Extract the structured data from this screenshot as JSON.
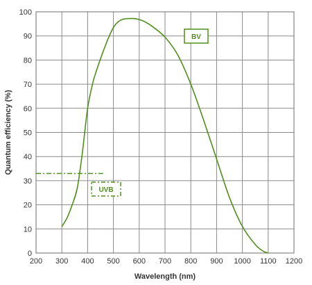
{
  "chart_data": {
    "type": "line",
    "title": "",
    "xlabel": "Wavelength (nm)",
    "ylabel": "Quantum efficiency (%)",
    "xlim": [
      200,
      1200
    ],
    "ylim": [
      0,
      100
    ],
    "x_ticks": [
      200,
      300,
      400,
      500,
      600,
      700,
      800,
      900,
      1000,
      1100,
      1200
    ],
    "y_ticks": [
      0,
      10,
      20,
      30,
      40,
      50,
      60,
      70,
      80,
      90,
      100
    ],
    "grid": true,
    "series": [
      {
        "name": "BV",
        "color": "#4e8f1c",
        "style": "solid",
        "x": [
          300,
          320,
          340,
          360,
          380,
          400,
          420,
          440,
          460,
          480,
          500,
          520,
          540,
          560,
          580,
          600,
          620,
          650,
          700,
          750,
          800,
          850,
          900,
          950,
          1000,
          1050,
          1080,
          1100
        ],
        "y": [
          11,
          14.5,
          20,
          27,
          42,
          60,
          70.5,
          77.5,
          83.5,
          89,
          93.5,
          96,
          97,
          97.2,
          97.2,
          96.8,
          96,
          94,
          89.5,
          82,
          70,
          55,
          39,
          23,
          11,
          3.5,
          0.8,
          0
        ]
      },
      {
        "name": "UVB",
        "color": "#4e8f1c",
        "style": "dash-dot",
        "x": [
          200,
          460
        ],
        "y": [
          33,
          33
        ]
      }
    ],
    "legend_labels": [
      {
        "text": "BV",
        "series": 0
      },
      {
        "text": "UVB",
        "series": 1
      }
    ]
  }
}
